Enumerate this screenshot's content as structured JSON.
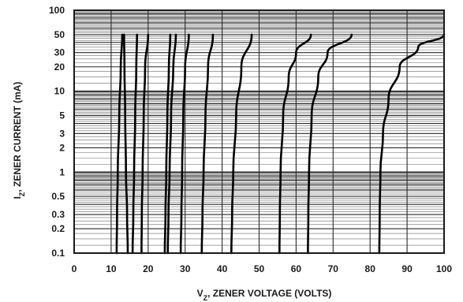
{
  "chart_data": {
    "type": "line",
    "xlabel": {
      "main": "V",
      "sub": "Z",
      "rest": ", ZENER VOLTAGE (VOLTS)"
    },
    "ylabel": {
      "main": "I",
      "sub": "Z",
      "rest": ", ZENER CURRENT (mA)"
    },
    "xlim": [
      0,
      100
    ],
    "ylim": [
      0.1,
      100
    ],
    "yscale": "log",
    "grid": true,
    "x_ticks": [
      "0",
      "10",
      "20",
      "30",
      "40",
      "50",
      "60",
      "70",
      "80",
      "90",
      "100"
    ],
    "y_ticks": [
      {
        "value": 100,
        "label": "100"
      },
      {
        "value": 50,
        "label": "50"
      },
      {
        "value": 30,
        "label": "30"
      },
      {
        "value": 20,
        "label": "20"
      },
      {
        "value": 10,
        "label": "10"
      },
      {
        "value": 5,
        "label": "5"
      },
      {
        "value": 3,
        "label": "3"
      },
      {
        "value": 2,
        "label": "2"
      },
      {
        "value": 1,
        "label": "1"
      },
      {
        "value": 0.5,
        "label": "0.5"
      },
      {
        "value": 0.3,
        "label": "0.3"
      },
      {
        "value": 0.2,
        "label": "0.2"
      },
      {
        "value": 0.1,
        "label": "0.1"
      }
    ],
    "series": [
      {
        "points": [
          [
            11.5,
            0.1
          ],
          [
            11.6,
            0.3
          ],
          [
            11.8,
            1
          ],
          [
            12.2,
            5
          ],
          [
            12.6,
            20
          ],
          [
            13.0,
            50
          ]
        ]
      },
      {
        "points": [
          [
            14.5,
            0.1
          ],
          [
            14.3,
            0.3
          ],
          [
            14.0,
            1
          ],
          [
            13.8,
            5
          ],
          [
            13.6,
            20
          ],
          [
            13.5,
            50
          ]
        ]
      },
      {
        "points": [
          [
            15.8,
            0.1
          ],
          [
            16.0,
            0.3
          ],
          [
            16.2,
            1
          ],
          [
            16.5,
            5
          ],
          [
            16.8,
            20
          ],
          [
            17.0,
            50
          ]
        ]
      },
      {
        "points": [
          [
            18.2,
            0.1
          ],
          [
            18.3,
            0.3
          ],
          [
            18.5,
            1
          ],
          [
            18.8,
            5
          ],
          [
            19.2,
            20
          ],
          [
            20.0,
            50
          ]
        ]
      },
      {
        "points": [
          [
            24.5,
            0.1
          ],
          [
            24.7,
            0.3
          ],
          [
            24.9,
            1
          ],
          [
            25.2,
            5
          ],
          [
            25.6,
            20
          ],
          [
            26.0,
            50
          ]
        ]
      },
      {
        "points": [
          [
            25.3,
            0.1
          ],
          [
            25.5,
            0.3
          ],
          [
            25.8,
            1
          ],
          [
            26.2,
            5
          ],
          [
            26.8,
            20
          ],
          [
            27.5,
            50
          ]
        ]
      },
      {
        "points": [
          [
            28.8,
            0.1
          ],
          [
            29.0,
            0.3
          ],
          [
            29.2,
            1
          ],
          [
            29.5,
            5
          ],
          [
            30.0,
            20
          ],
          [
            31.0,
            50
          ]
        ]
      },
      {
        "points": [
          [
            34.5,
            0.1
          ],
          [
            34.7,
            0.3
          ],
          [
            35.0,
            1
          ],
          [
            35.5,
            5
          ],
          [
            36.2,
            20
          ],
          [
            37.5,
            50
          ]
        ]
      },
      {
        "points": [
          [
            42.5,
            0.1
          ],
          [
            42.7,
            0.3
          ],
          [
            43.0,
            1
          ],
          [
            43.8,
            5
          ],
          [
            45.2,
            20
          ],
          [
            48.0,
            50
          ]
        ]
      },
      {
        "points": [
          [
            55.5,
            0.1
          ],
          [
            55.6,
            0.3
          ],
          [
            55.8,
            1
          ],
          [
            56.5,
            5
          ],
          [
            58.0,
            15
          ],
          [
            60.0,
            30
          ],
          [
            64.0,
            50
          ]
        ]
      },
      {
        "points": [
          [
            63.2,
            0.1
          ],
          [
            63.3,
            0.3
          ],
          [
            63.5,
            1
          ],
          [
            64.2,
            5
          ],
          [
            66.0,
            15
          ],
          [
            68.5,
            30
          ],
          [
            75.0,
            50
          ]
        ]
      },
      {
        "points": [
          [
            82.5,
            0.1
          ],
          [
            82.6,
            0.3
          ],
          [
            82.8,
            1
          ],
          [
            83.5,
            3
          ],
          [
            85.0,
            8
          ],
          [
            88.0,
            20
          ],
          [
            93.0,
            35
          ],
          [
            100.0,
            50
          ]
        ]
      }
    ]
  }
}
